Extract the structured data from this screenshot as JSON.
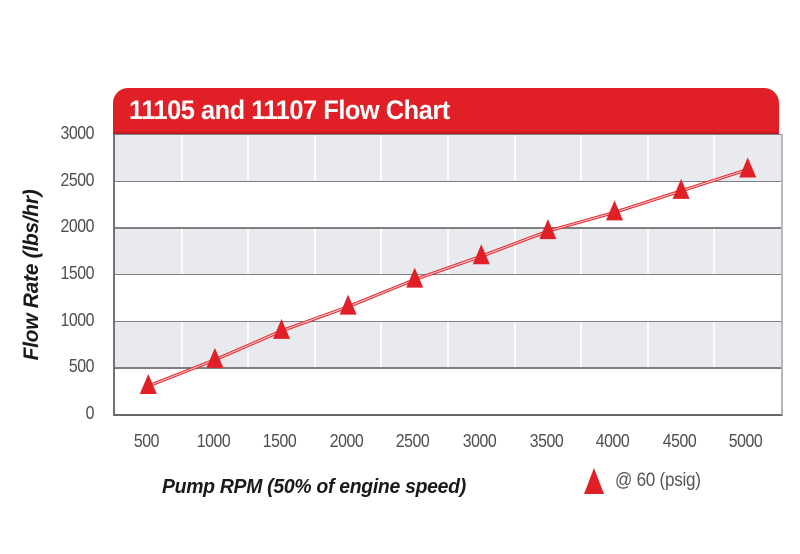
{
  "chart_data": {
    "type": "line",
    "title": "11105 and 11107 Flow Chart",
    "xlabel": "Pump RPM (50% of engine speed)",
    "ylabel": "Flow Rate (lbs/hr)",
    "x": [
      500,
      1000,
      1500,
      2000,
      2500,
      3000,
      3500,
      4000,
      4500,
      5000
    ],
    "series": [
      {
        "name": "@ 60 (psig)",
        "marker": "triangle",
        "values": [
          300,
          580,
          890,
          1150,
          1440,
          1690,
          1960,
          2160,
          2390,
          2620
        ]
      }
    ],
    "ylim": [
      0,
      3000
    ],
    "yticks": [
      0,
      500,
      1000,
      1500,
      2000,
      2500,
      3000
    ],
    "grid": {
      "horizontal": true,
      "alternating_shaded_bands": true,
      "vertical_separators_in_shaded_bands": true
    },
    "legend": {
      "label": "@ 60 (psig)",
      "position": "below-chart-right"
    }
  },
  "colors": {
    "banner_red": "#e01f26",
    "marker_red": "#e11f26",
    "line_red": "#e8262d",
    "line_core": "#f8cdce",
    "band_gray": "#e9eaed",
    "hgrid": "#7e7f83",
    "axis_text": "#4d4e52",
    "axis_title_text": "#1a1a1c"
  }
}
